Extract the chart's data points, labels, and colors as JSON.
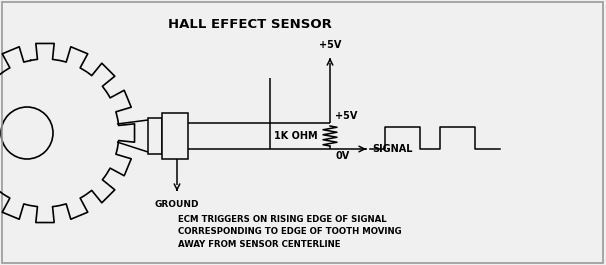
{
  "title": "HALL EFFECT SENSOR",
  "bg_color": "#f0f0f0",
  "line_color": "#000000",
  "font_color": "#000000",
  "labels": {
    "plus5v_top": "+5V",
    "plus5v_mid": "+5V",
    "zero_v": "0V",
    "signal": "SIGNAL",
    "ground": "GROUND",
    "resistor": "1K OHM",
    "ecm_text": "ECM TRIGGERS ON RISING EDGE OF SIGNAL\nCORRESPONDING TO EDGE OF TOOTH MOVING\nAWAY FROM SENSOR CENTERLINE"
  },
  "figsize": [
    6.06,
    2.65
  ],
  "dpi": 100
}
